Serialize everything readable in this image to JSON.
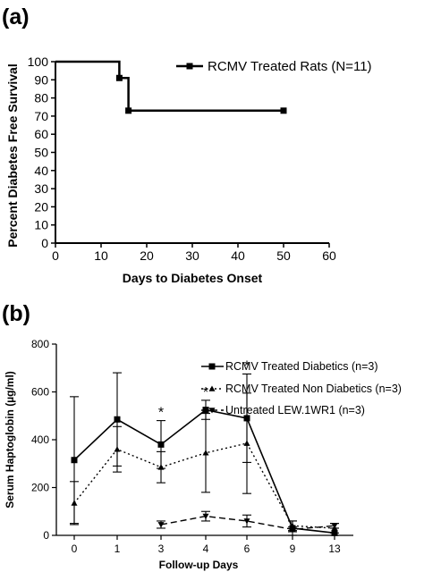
{
  "chart_data": [
    {
      "panel_label": "(a)",
      "type": "line",
      "xlabel": "Days to Diabetes Onset",
      "ylabel": "Percent Diabetes Free Survival",
      "xlim": [
        0,
        60
      ],
      "ylim": [
        0,
        100
      ],
      "xticks": [
        "0",
        "10",
        "20",
        "30",
        "40",
        "50",
        "60"
      ],
      "yticks": [
        "0",
        "10",
        "20",
        "30",
        "40",
        "50",
        "60",
        "70",
        "80",
        "90",
        "100"
      ],
      "step": true,
      "series": [
        {
          "name": "RCMV Treated Rats (N=11)",
          "x": [
            0,
            14,
            16,
            50
          ],
          "y": [
            100,
            91,
            73,
            73
          ],
          "markers_x": [
            14,
            16,
            50
          ],
          "markers_y": [
            91,
            73,
            73
          ],
          "marker": "square",
          "style": "solid"
        }
      ],
      "legend_position": "top-right"
    },
    {
      "panel_label": "(b)",
      "type": "line",
      "xlabel": "Follow-up Days",
      "ylabel": "Serum Haptoglobin (µg/ml)",
      "categories": [
        "0",
        "1",
        "3",
        "4",
        "6",
        "9",
        "13"
      ],
      "ylim": [
        0,
        800
      ],
      "yticks": [
        "0",
        "200",
        "400",
        "600",
        "800"
      ],
      "series": [
        {
          "name": "RCMV Treated Diabetics (n=3)",
          "marker": "square",
          "style": "solid",
          "values": [
            315,
            485,
            380,
            525,
            490,
            30,
            10
          ],
          "err": [
            265,
            195,
            100,
            40,
            185,
            30,
            20
          ]
        },
        {
          "name": "RCMV Treated Non Diabetics (n=3)",
          "marker": "triangle-up",
          "style": "dotted",
          "values": [
            135,
            360,
            285,
            345,
            385,
            40,
            30
          ],
          "err": [
            90,
            95,
            65,
            165,
            210,
            20,
            20
          ]
        },
        {
          "name": "Untreated LEW.1WR1 (n=3)",
          "marker": "triangle-down",
          "style": "dashed",
          "values": [
            null,
            null,
            45,
            80,
            60,
            25,
            40
          ],
          "err": [
            null,
            null,
            15,
            20,
            25,
            10,
            10
          ]
        }
      ],
      "annotations": [
        {
          "text": "*",
          "category": "3"
        },
        {
          "text": "*",
          "category": "4"
        },
        {
          "text": "*",
          "category": "6"
        }
      ],
      "legend_position": "top-right"
    }
  ]
}
